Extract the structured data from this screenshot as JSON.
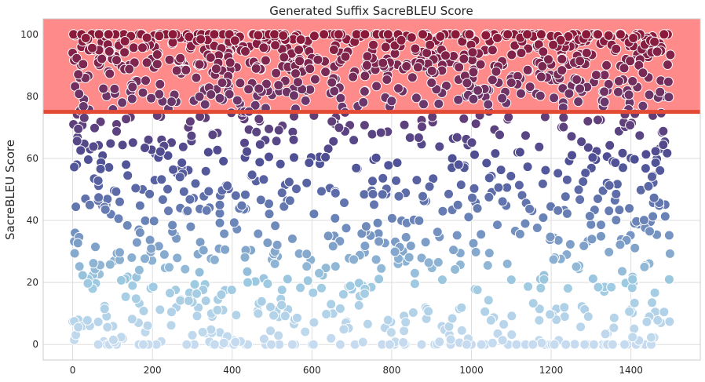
{
  "chart_data": {
    "type": "scatter",
    "title": "Generated Suffix SacreBLEU Score",
    "xlabel": "",
    "ylabel": "SacreBLEU Score",
    "xlim": [
      -74,
      1574
    ],
    "ylim": [
      -5,
      105
    ],
    "x_ticks": [
      0,
      200,
      400,
      600,
      800,
      1000,
      1200,
      1400
    ],
    "x_tick_labels": [
      "0",
      "200",
      "400",
      "600",
      "800",
      "1000",
      "1200",
      "1400"
    ],
    "y_ticks": [
      0,
      20,
      40,
      60,
      80,
      100
    ],
    "y_tick_labels": [
      "0",
      "20",
      "40",
      "60",
      "80",
      "100"
    ],
    "grid": true,
    "legend": "none",
    "n_points": 1500,
    "point_x_range": [
      0,
      1499
    ],
    "point_y_range": [
      0,
      100
    ],
    "threshold_line": {
      "y": 75,
      "color": "#e34a33"
    },
    "highlight_band": {
      "y_from": 75,
      "y_to": 105,
      "color": "#ff8a8a"
    },
    "colormap": [
      "#c6dbef",
      "#9ecae1",
      "#6a84b8",
      "#4e4f95",
      "#8b1a3a"
    ],
    "colormap_stops": [
      0,
      20,
      40,
      60,
      100
    ],
    "sampled_points": [
      [
        0,
        94
      ],
      [
        2,
        71
      ],
      [
        6,
        36
      ],
      [
        10,
        58
      ],
      [
        14,
        8
      ],
      [
        18,
        86
      ],
      [
        22,
        96
      ],
      [
        28,
        79
      ],
      [
        32,
        47
      ],
      [
        38,
        6
      ],
      [
        44,
        63
      ],
      [
        50,
        95
      ],
      [
        58,
        24
      ],
      [
        66,
        92
      ],
      [
        72,
        100
      ],
      [
        78,
        1
      ],
      [
        84,
        45
      ],
      [
        90,
        88
      ],
      [
        96,
        42
      ],
      [
        104,
        27
      ],
      [
        110,
        71
      ],
      [
        118,
        97
      ],
      [
        126,
        2
      ],
      [
        134,
        58
      ],
      [
        142,
        90
      ],
      [
        150,
        19
      ],
      [
        158,
        85
      ],
      [
        166,
        37
      ],
      [
        174,
        100
      ],
      [
        182,
        4
      ],
      [
        190,
        66
      ],
      [
        198,
        92
      ],
      [
        206,
        53
      ],
      [
        214,
        94
      ],
      [
        222,
        1
      ],
      [
        230,
        29
      ],
      [
        240,
        76
      ],
      [
        250,
        97
      ],
      [
        260,
        12
      ],
      [
        270,
        44
      ],
      [
        280,
        90
      ],
      [
        290,
        70
      ],
      [
        300,
        3
      ],
      [
        310,
        86
      ],
      [
        320,
        33
      ],
      [
        330,
        95
      ],
      [
        340,
        62
      ],
      [
        350,
        9
      ],
      [
        360,
        100
      ],
      [
        370,
        48
      ]
    ]
  }
}
